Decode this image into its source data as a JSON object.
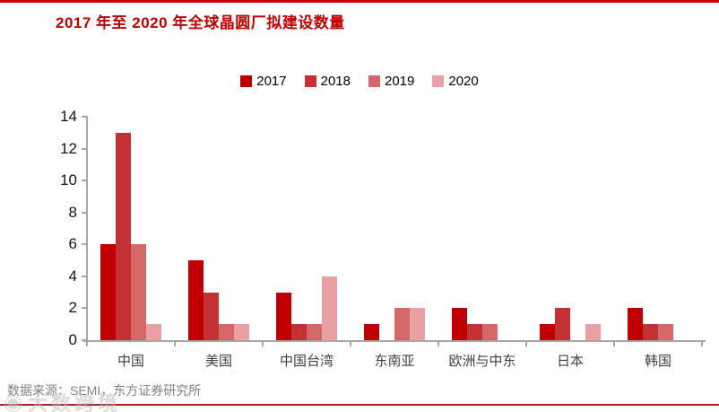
{
  "title": "2017 年至 2020 年全球晶圆厂拟建设数量",
  "accent_colors": {
    "title_red": "#C00000",
    "top_rule": "#C00000",
    "bottom_rule": "#9E2B25",
    "axis_gray": "#A6A6A6"
  },
  "footer": {
    "source": "数据来源：SEMI，东方证券研究所"
  },
  "watermark": {
    "logo": "◉",
    "text": "大数跨境"
  },
  "chart_data": {
    "type": "bar",
    "title": "2017 年至 2020 年全球晶圆厂拟建设数量",
    "categories": [
      "中国",
      "美国",
      "中国台湾",
      "东南亚",
      "欧洲与中东",
      "日本",
      "韩国"
    ],
    "series": [
      {
        "name": "2017",
        "color": "#C00000",
        "values": [
          6,
          5,
          3,
          1,
          2,
          1,
          2
        ]
      },
      {
        "name": "2018",
        "color": "#C43135",
        "values": [
          13,
          3,
          1,
          0,
          1,
          2,
          1
        ]
      },
      {
        "name": "2019",
        "color": "#D56769",
        "values": [
          6,
          1,
          1,
          2,
          1,
          0,
          1
        ]
      },
      {
        "name": "2020",
        "color": "#E9A0A2",
        "values": [
          1,
          1,
          4,
          2,
          0,
          1,
          0
        ]
      }
    ],
    "xlabel": "",
    "ylabel": "",
    "ylim": [
      0,
      14
    ],
    "yticks": [
      0,
      2,
      4,
      6,
      8,
      10,
      12,
      14
    ],
    "grid": false,
    "legend_position": "top-center"
  }
}
